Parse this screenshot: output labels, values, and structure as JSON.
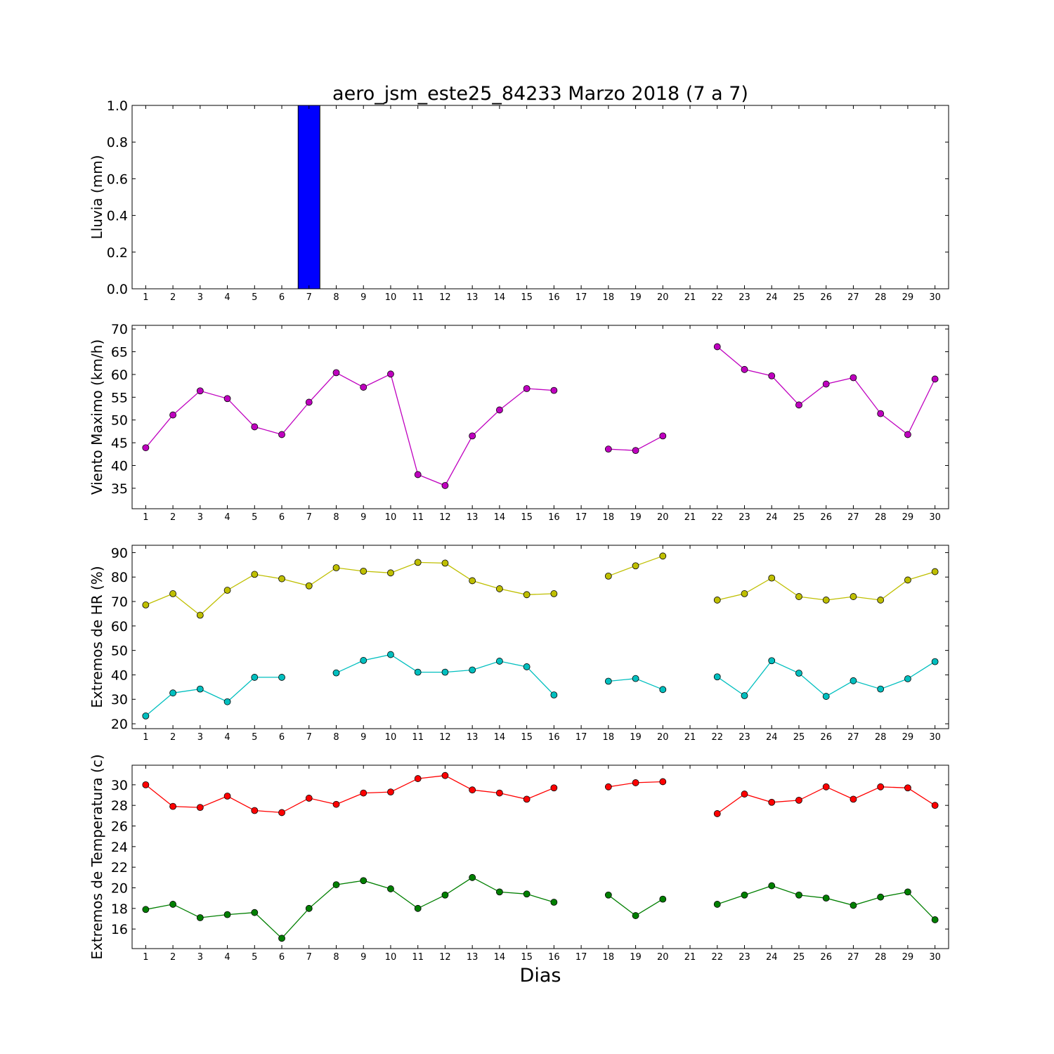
{
  "chart_data": [
    {
      "type": "bar",
      "title": "aero_jsm_este25_84233 Marzo 2018  (7 a 7)",
      "xlabel": "",
      "ylabel": "Lluvia (mm)",
      "x": [
        1,
        2,
        3,
        4,
        5,
        6,
        7,
        8,
        9,
        10,
        11,
        12,
        13,
        14,
        15,
        16,
        17,
        18,
        19,
        20,
        21,
        22,
        23,
        24,
        25,
        26,
        27,
        28,
        29,
        30
      ],
      "xticks": [
        1,
        2,
        3,
        4,
        5,
        6,
        7,
        8,
        9,
        10,
        11,
        12,
        13,
        14,
        15,
        16,
        17,
        18,
        19,
        20,
        21,
        22,
        23,
        24,
        25,
        26,
        27,
        28,
        29,
        30
      ],
      "yticks": [
        0.0,
        0.2,
        0.4,
        0.6,
        0.8,
        1.0
      ],
      "xlim": [
        0.5,
        30.5
      ],
      "ylim": [
        0,
        1.0
      ],
      "grid": false,
      "series": [
        {
          "color": "#0000ff",
          "values": [
            0,
            0,
            0,
            0,
            0,
            0,
            1.0,
            0,
            0,
            0,
            0,
            0,
            0,
            0,
            0,
            0,
            0,
            0,
            0,
            0,
            0,
            0,
            0,
            0,
            0,
            0,
            0,
            0,
            0,
            0
          ]
        }
      ]
    },
    {
      "type": "line",
      "title": "",
      "xlabel": "",
      "ylabel": "Viento Maximo (km/h)",
      "x": [
        1,
        2,
        3,
        4,
        5,
        6,
        7,
        8,
        9,
        10,
        11,
        12,
        13,
        14,
        15,
        16,
        17,
        18,
        19,
        20,
        21,
        22,
        23,
        24,
        25,
        26,
        27,
        28,
        29,
        30
      ],
      "xticks": [
        1,
        2,
        3,
        4,
        5,
        6,
        7,
        8,
        9,
        10,
        11,
        12,
        13,
        14,
        15,
        16,
        17,
        18,
        19,
        20,
        21,
        22,
        23,
        24,
        25,
        26,
        27,
        28,
        29,
        30
      ],
      "yticks": [
        35,
        40,
        45,
        50,
        55,
        60,
        65,
        70
      ],
      "xlim": [
        0.5,
        30.5
      ],
      "ylim": [
        30.5,
        70.8
      ],
      "grid": false,
      "series": [
        {
          "color": "#bf00bf",
          "values": [
            43.9,
            51.1,
            56.4,
            54.7,
            48.5,
            46.8,
            53.9,
            60.4,
            57.2,
            60.1,
            38.0,
            35.6,
            46.5,
            52.2,
            56.9,
            56.5,
            null,
            43.6,
            43.3,
            46.5,
            null,
            66.1,
            61.1,
            59.7,
            53.3,
            57.9,
            59.3,
            51.4,
            46.8,
            59.0
          ]
        }
      ]
    },
    {
      "type": "line",
      "title": "",
      "xlabel": "",
      "ylabel": "Extremos de HR (%)",
      "x": [
        1,
        2,
        3,
        4,
        5,
        6,
        7,
        8,
        9,
        10,
        11,
        12,
        13,
        14,
        15,
        16,
        17,
        18,
        19,
        20,
        21,
        22,
        23,
        24,
        25,
        26,
        27,
        28,
        29,
        30
      ],
      "xticks": [
        1,
        2,
        3,
        4,
        5,
        6,
        7,
        8,
        9,
        10,
        11,
        12,
        13,
        14,
        15,
        16,
        17,
        18,
        19,
        20,
        21,
        22,
        23,
        24,
        25,
        26,
        27,
        28,
        29,
        30
      ],
      "yticks": [
        20,
        30,
        40,
        50,
        60,
        70,
        80,
        90
      ],
      "xlim": [
        0.5,
        30.5
      ],
      "ylim": [
        18,
        93
      ],
      "grid": false,
      "series": [
        {
          "color": "#bfbf00",
          "values": [
            68.6,
            73.2,
            64.4,
            74.6,
            81.1,
            79.3,
            76.4,
            83.8,
            82.4,
            81.7,
            86.0,
            85.7,
            78.5,
            75.2,
            72.8,
            73.2,
            null,
            80.4,
            84.6,
            88.6,
            null,
            70.6,
            73.2,
            79.6,
            72.0,
            70.6,
            72.0,
            70.6,
            78.8,
            82.2
          ]
        },
        {
          "color": "#00bfbf",
          "values": [
            23.2,
            32.6,
            34.2,
            29.0,
            39.0,
            39.0,
            null,
            40.8,
            45.9,
            48.3,
            41.1,
            41.1,
            42.0,
            45.6,
            43.3,
            31.8,
            null,
            37.4,
            38.5,
            34.0,
            null,
            39.2,
            31.5,
            45.8,
            40.7,
            31.2,
            37.6,
            34.2,
            38.4,
            45.4
          ]
        }
      ]
    },
    {
      "type": "line",
      "title": "",
      "xlabel": "Dias",
      "ylabel": "Extremos de Temperatura (c)",
      "x": [
        1,
        2,
        3,
        4,
        5,
        6,
        7,
        8,
        9,
        10,
        11,
        12,
        13,
        14,
        15,
        16,
        17,
        18,
        19,
        20,
        21,
        22,
        23,
        24,
        25,
        26,
        27,
        28,
        29,
        30
      ],
      "xticks": [
        1,
        2,
        3,
        4,
        5,
        6,
        7,
        8,
        9,
        10,
        11,
        12,
        13,
        14,
        15,
        16,
        17,
        18,
        19,
        20,
        21,
        22,
        23,
        24,
        25,
        26,
        27,
        28,
        29,
        30
      ],
      "yticks": [
        16,
        18,
        20,
        22,
        24,
        26,
        28,
        30
      ],
      "xlim": [
        0.5,
        30.5
      ],
      "ylim": [
        14.1,
        31.9
      ],
      "grid": false,
      "series": [
        {
          "color": "#ff0000",
          "values": [
            30.0,
            27.9,
            27.8,
            28.9,
            27.5,
            27.3,
            28.7,
            28.1,
            29.2,
            29.3,
            30.6,
            30.9,
            29.5,
            29.2,
            28.6,
            29.7,
            null,
            29.8,
            30.2,
            30.3,
            null,
            27.2,
            29.1,
            28.3,
            28.5,
            29.8,
            28.6,
            29.8,
            29.7,
            28.0
          ]
        },
        {
          "color": "#007f00",
          "values": [
            17.9,
            18.4,
            17.1,
            17.4,
            17.6,
            15.1,
            18.0,
            20.3,
            20.7,
            19.9,
            18.0,
            19.3,
            21.0,
            19.6,
            19.4,
            18.6,
            null,
            19.3,
            17.3,
            18.9,
            null,
            18.4,
            19.3,
            20.2,
            19.3,
            19.0,
            18.3,
            19.1,
            19.6,
            16.9
          ]
        }
      ]
    }
  ]
}
